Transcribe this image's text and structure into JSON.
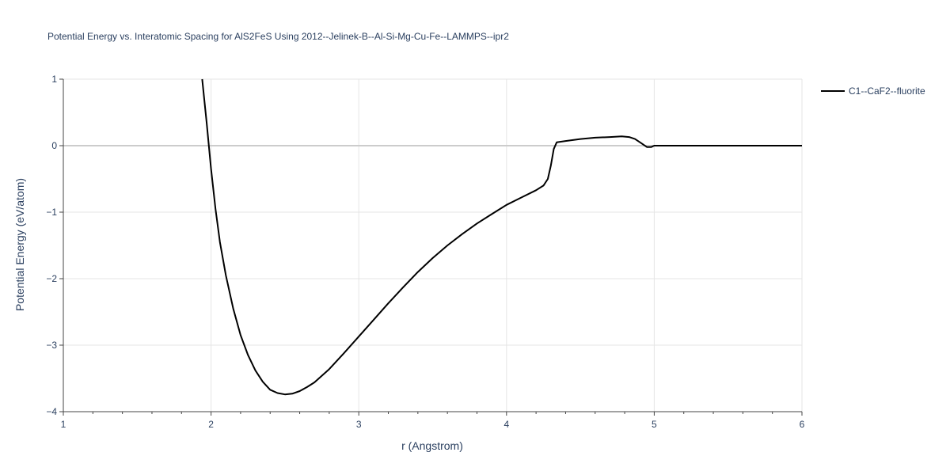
{
  "chart_data": {
    "type": "line",
    "title": "Potential Energy vs. Interatomic Spacing for AlS2FeS Using 2012--Jelinek-B--Al-Si-Mg-Cu-Fe--LAMMPS--ipr2",
    "xlabel": "r (Angstrom)",
    "ylabel": "Potential Energy (eV/atom)",
    "xlim": [
      1,
      6
    ],
    "ylim": [
      -4,
      1
    ],
    "xticks": [
      "1",
      "2",
      "3",
      "4",
      "5",
      "6"
    ],
    "yticks": [
      "1",
      "0",
      "−1",
      "−2",
      "−3",
      "−4"
    ],
    "grid": true,
    "legend_position": "top-right",
    "colors": {
      "line": "#000000",
      "grid": "#e5e5e5",
      "zeroline": "#cccccc",
      "text": "#2a3f5f"
    },
    "series": [
      {
        "name": "C1--CaF2--fluorite",
        "x": [
          1.94,
          1.97,
          2.0,
          2.03,
          2.06,
          2.1,
          2.15,
          2.2,
          2.25,
          2.3,
          2.35,
          2.4,
          2.45,
          2.5,
          2.55,
          2.6,
          2.65,
          2.7,
          2.8,
          2.9,
          3.0,
          3.1,
          3.2,
          3.3,
          3.4,
          3.5,
          3.6,
          3.7,
          3.8,
          3.9,
          4.0,
          4.1,
          4.2,
          4.25,
          4.28,
          4.3,
          4.32,
          4.34,
          4.4,
          4.5,
          4.6,
          4.7,
          4.78,
          4.83,
          4.87,
          4.91,
          4.95,
          4.98,
          5.0,
          5.1,
          5.3,
          5.6,
          6.0
        ],
        "y": [
          1.0,
          0.35,
          -0.35,
          -0.95,
          -1.45,
          -1.95,
          -2.45,
          -2.85,
          -3.15,
          -3.38,
          -3.55,
          -3.67,
          -3.72,
          -3.74,
          -3.73,
          -3.69,
          -3.63,
          -3.56,
          -3.36,
          -3.12,
          -2.87,
          -2.62,
          -2.37,
          -2.13,
          -1.9,
          -1.69,
          -1.5,
          -1.33,
          -1.17,
          -1.03,
          -0.89,
          -0.78,
          -0.67,
          -0.6,
          -0.5,
          -0.3,
          -0.05,
          0.05,
          0.07,
          0.1,
          0.12,
          0.13,
          0.14,
          0.13,
          0.1,
          0.04,
          -0.02,
          -0.02,
          0.0,
          0.0,
          0.0,
          0.0,
          0.0
        ]
      }
    ]
  }
}
